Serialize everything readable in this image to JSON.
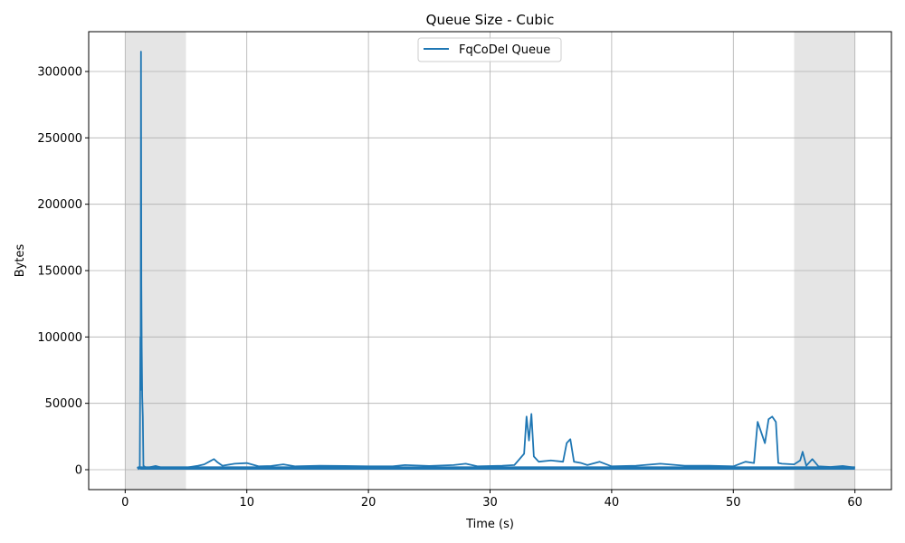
{
  "chart_data": {
    "type": "line",
    "title": "Queue Size - Cubic",
    "xlabel": "Time (s)",
    "ylabel": "Bytes",
    "xlim": [
      -3,
      63
    ],
    "ylim": [
      -15000,
      330000
    ],
    "x_ticks": [
      0,
      10,
      20,
      30,
      40,
      50,
      60
    ],
    "y_ticks": [
      0,
      50000,
      100000,
      150000,
      200000,
      250000,
      300000
    ],
    "x_tick_labels": [
      "0",
      "10",
      "20",
      "30",
      "40",
      "50",
      "60"
    ],
    "y_tick_labels": [
      "0",
      "50000",
      "100000",
      "150000",
      "200000",
      "250000",
      "300000"
    ],
    "grid": true,
    "legend_position": "top-center",
    "shaded_regions": [
      {
        "x_start": 0,
        "x_end": 5,
        "color": "#e5e5e5"
      },
      {
        "x_start": 55,
        "x_end": 60,
        "color": "#e5e5e5"
      }
    ],
    "series": [
      {
        "name": "FqCoDel Queue",
        "color": "#1f77b4",
        "points": [
          [
            1.0,
            1000
          ],
          [
            1.05,
            1800
          ],
          [
            1.1,
            500
          ],
          [
            1.15,
            2000
          ],
          [
            1.2,
            1200
          ],
          [
            1.25,
            100000
          ],
          [
            1.27,
            60000
          ],
          [
            1.3,
            315000
          ],
          [
            1.33,
            140000
          ],
          [
            1.36,
            92000
          ],
          [
            1.4,
            55000
          ],
          [
            1.45,
            40000
          ],
          [
            1.5,
            3000
          ],
          [
            1.7,
            1500
          ],
          [
            2.0,
            1800
          ],
          [
            2.5,
            2800
          ],
          [
            3.0,
            1500
          ],
          [
            4.0,
            1600
          ],
          [
            5.0,
            1500
          ],
          [
            6.0,
            3000
          ],
          [
            6.5,
            4000
          ],
          [
            7.0,
            6500
          ],
          [
            7.3,
            8000
          ],
          [
            7.6,
            5500
          ],
          [
            8.0,
            3000
          ],
          [
            9.0,
            4500
          ],
          [
            10.0,
            5000
          ],
          [
            11.0,
            2500
          ],
          [
            12.0,
            2800
          ],
          [
            13.0,
            4000
          ],
          [
            14.0,
            2500
          ],
          [
            16.0,
            3000
          ],
          [
            18.0,
            2800
          ],
          [
            20.0,
            2500
          ],
          [
            22.0,
            2500
          ],
          [
            23.0,
            3500
          ],
          [
            25.0,
            2800
          ],
          [
            27.0,
            3500
          ],
          [
            28.0,
            4500
          ],
          [
            29.0,
            2500
          ],
          [
            31.0,
            3000
          ],
          [
            32.0,
            3500
          ],
          [
            32.8,
            12000
          ],
          [
            33.0,
            40000
          ],
          [
            33.2,
            22000
          ],
          [
            33.4,
            42000
          ],
          [
            33.6,
            10000
          ],
          [
            34.0,
            6000
          ],
          [
            35.0,
            7000
          ],
          [
            36.0,
            6000
          ],
          [
            36.3,
            20000
          ],
          [
            36.6,
            23000
          ],
          [
            36.9,
            6000
          ],
          [
            37.5,
            5000
          ],
          [
            38.0,
            3500
          ],
          [
            39.0,
            6000
          ],
          [
            40.0,
            2500
          ],
          [
            42.0,
            3000
          ],
          [
            44.0,
            4500
          ],
          [
            46.0,
            3000
          ],
          [
            48.0,
            3000
          ],
          [
            50.0,
            2500
          ],
          [
            51.0,
            6000
          ],
          [
            51.7,
            5000
          ],
          [
            52.0,
            36000
          ],
          [
            52.3,
            28000
          ],
          [
            52.6,
            20000
          ],
          [
            52.9,
            38000
          ],
          [
            53.2,
            40000
          ],
          [
            53.5,
            36000
          ],
          [
            53.7,
            5000
          ],
          [
            54.0,
            4500
          ],
          [
            55.0,
            4000
          ],
          [
            55.5,
            7000
          ],
          [
            55.7,
            13500
          ],
          [
            56.0,
            3000
          ],
          [
            56.5,
            8000
          ],
          [
            57.0,
            2500
          ],
          [
            58.0,
            2000
          ],
          [
            59.0,
            2800
          ],
          [
            60.0,
            1500
          ]
        ]
      }
    ]
  }
}
